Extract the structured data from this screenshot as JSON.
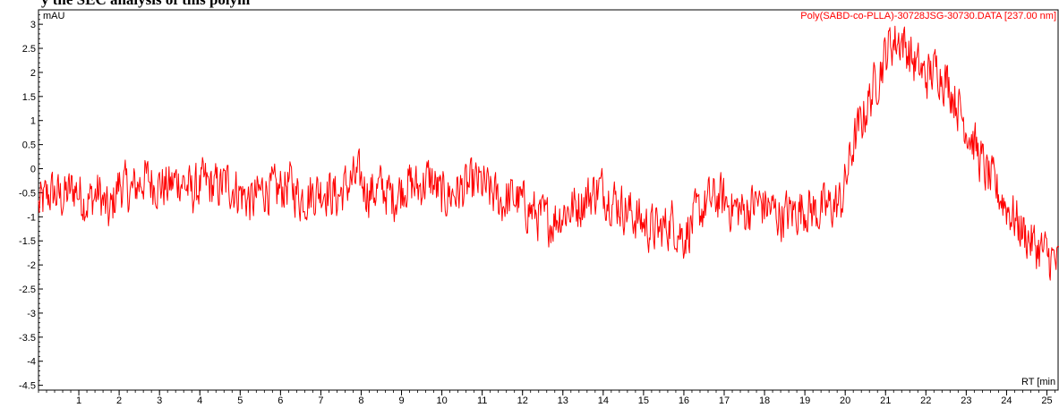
{
  "chart_data": {
    "type": "line",
    "title_fragment": "y the SEC analysis of this polym",
    "ylabel": "mAU",
    "xlabel": "RT [min",
    "xlim": [
      0,
      25.3
    ],
    "ylim": [
      -4.6,
      3.3
    ],
    "x_ticks": [
      1,
      2,
      3,
      4,
      5,
      6,
      7,
      8,
      9,
      10,
      11,
      12,
      13,
      14,
      15,
      16,
      17,
      18,
      19,
      20,
      21,
      22,
      23,
      24,
      25
    ],
    "y_ticks": [
      3,
      2.5,
      2,
      1.5,
      1,
      0.5,
      0,
      -0.5,
      -1,
      -1.5,
      -2,
      -2.5,
      -3,
      -3.5,
      -4,
      -4.5
    ],
    "grid": false,
    "legend_position": "top-right",
    "series": [
      {
        "name": "Poly(SABD-co-PLLA)-30728JSG-30730.DATA [237.00 nm]",
        "color": "#ff0000",
        "x": [
          0,
          0.3,
          0.6,
          0.9,
          1.2,
          1.5,
          1.75,
          2.0,
          2.3,
          2.6,
          2.9,
          3.2,
          3.5,
          3.8,
          4.1,
          4.4,
          4.7,
          5.0,
          5.3,
          5.6,
          5.9,
          6.2,
          6.5,
          6.8,
          7.1,
          7.4,
          7.7,
          7.95,
          8.2,
          8.5,
          8.8,
          9.1,
          9.4,
          9.7,
          10.0,
          10.3,
          10.6,
          10.9,
          11.2,
          11.5,
          11.8,
          12.1,
          12.4,
          12.7,
          13.0,
          13.3,
          13.6,
          13.9,
          14.2,
          14.5,
          14.8,
          15.1,
          15.4,
          15.7,
          16.0,
          16.3,
          16.6,
          16.9,
          17.2,
          17.5,
          17.8,
          18.1,
          18.4,
          18.7,
          19.0,
          19.3,
          19.6,
          19.9,
          20.2,
          20.5,
          20.8,
          21.1,
          21.4,
          21.7,
          22.0,
          22.3,
          22.6,
          22.9,
          23.2,
          23.5,
          23.8,
          24.1,
          24.4,
          24.7,
          25.0,
          25.3
        ],
        "values": [
          -0.8,
          -0.5,
          -0.6,
          -0.4,
          -0.7,
          -0.5,
          -1.0,
          -0.3,
          -0.5,
          -0.2,
          -0.3,
          -0.4,
          -0.2,
          -0.5,
          -0.3,
          -0.4,
          -0.3,
          -0.5,
          -0.7,
          -0.4,
          -0.5,
          -0.3,
          -0.6,
          -0.5,
          -0.4,
          -0.6,
          -0.3,
          -0.2,
          -0.5,
          -0.4,
          -0.6,
          -0.3,
          -0.4,
          -0.2,
          -0.6,
          -0.5,
          -0.4,
          -0.3,
          -0.5,
          -0.7,
          -0.6,
          -0.8,
          -1.0,
          -1.1,
          -0.9,
          -0.8,
          -0.6,
          -0.4,
          -0.6,
          -0.8,
          -1.0,
          -1.2,
          -1.3,
          -1.1,
          -1.4,
          -1.0,
          -0.7,
          -0.6,
          -0.8,
          -0.9,
          -0.7,
          -0.8,
          -1.0,
          -0.9,
          -0.8,
          -0.9,
          -0.8,
          -0.7,
          0.5,
          1.2,
          1.9,
          2.6,
          2.7,
          2.2,
          1.9,
          2.1,
          1.7,
          1.1,
          0.5,
          -0.1,
          -0.5,
          -0.9,
          -1.3,
          -1.6,
          -1.8,
          -2.0
        ]
      }
    ]
  }
}
